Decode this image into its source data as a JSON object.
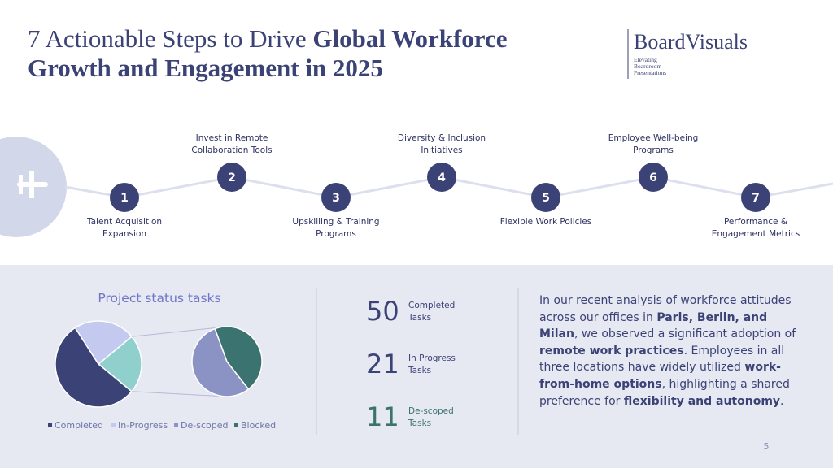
{
  "title": [
    {
      "text": "7 Actionable Steps to Drive ",
      "bold": false
    },
    {
      "text": "Global Workforce Growth and Engagement in 2025",
      "bold": true
    }
  ],
  "logo": {
    "name": "BoardVisuals",
    "tagline": [
      "Elevating",
      "Boardroom",
      "Presentations"
    ]
  },
  "steps": [
    {
      "number": "1",
      "label": "Talent Acquisition Expansion"
    },
    {
      "number": "2",
      "label": "Invest in Remote Collaboration Tools"
    },
    {
      "number": "3",
      "label": "Upskilling & Training Programs"
    },
    {
      "number": "4",
      "label": "Diversity & Inclusion Initiatives"
    },
    {
      "number": "5",
      "label": "Flexible Work Policies"
    },
    {
      "number": "6",
      "label": "Employee Well-being Programs"
    },
    {
      "number": "7",
      "label": "Performance & Engagement Metrics"
    }
  ],
  "chart": {
    "type": "pie-of-pie",
    "title": "Project status tasks",
    "categories": [
      "Completed",
      "In-Progress",
      "De-scoped",
      "Blocked"
    ],
    "values": [
      50,
      21,
      11,
      9
    ],
    "colors": [
      "#3b4275",
      "#c3c9ef",
      "#8a93c4",
      "#3a7370"
    ],
    "secondary_count": 2,
    "other_color": "#8fd0cc"
  },
  "stats": [
    {
      "label": "Completed Tasks",
      "color": "#3b4275"
    },
    {
      "label": "In Progress Tasks",
      "color": "#3b4275"
    },
    {
      "label": "De-scoped Tasks",
      "color": "#3a7370"
    }
  ],
  "paragraph": [
    {
      "text": "In our recent analysis of workforce attitudes across our offices in ",
      "bold": false
    },
    {
      "text": "Paris, Berlin, and Milan",
      "bold": true
    },
    {
      "text": ", we observed a significant adoption of ",
      "bold": false
    },
    {
      "text": "remote work practices",
      "bold": true
    },
    {
      "text": ". Employees in all three locations have widely utilized ",
      "bold": false
    },
    {
      "text": "work-from-home options",
      "bold": true
    },
    {
      "text": ", highlighting a shared preference for ",
      "bold": false
    },
    {
      "text": "flexibility and autonomy",
      "bold": true
    },
    {
      "text": ".",
      "bold": false
    }
  ],
  "page_number": "5"
}
